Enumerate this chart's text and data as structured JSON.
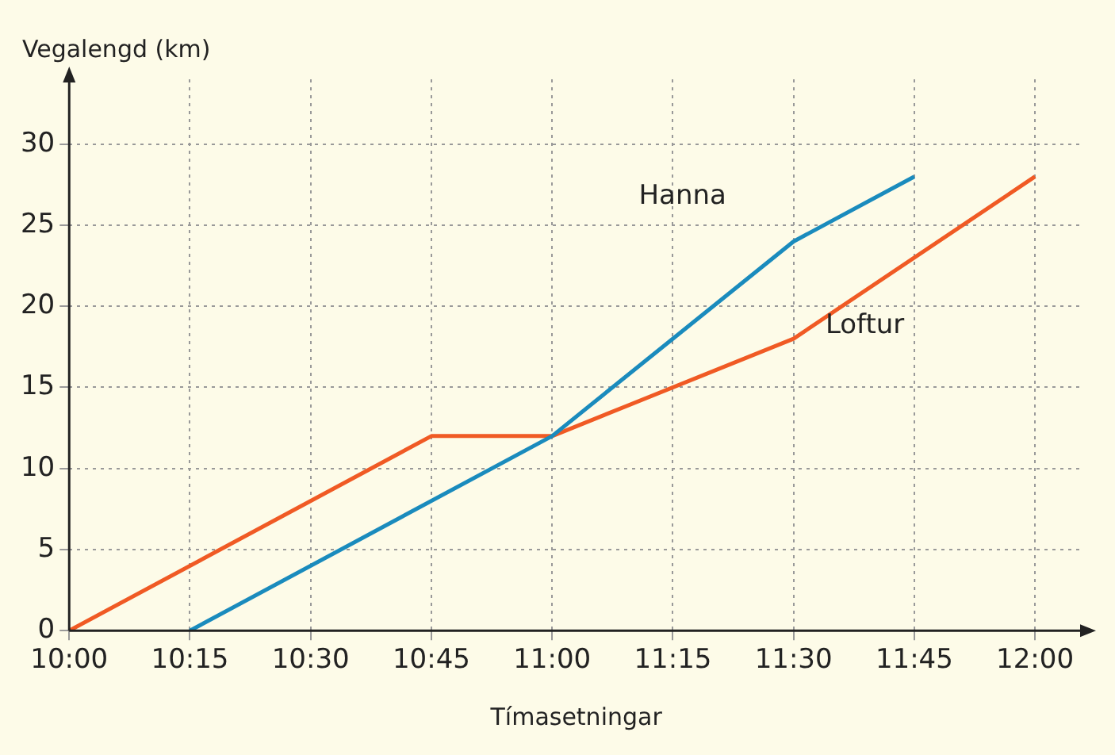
{
  "chart_data": {
    "type": "line",
    "xlabel": "Tímasetningar",
    "ylabel": "Vegalengd (km)",
    "xlim": [
      10,
      12.1
    ],
    "ylim": [
      0,
      34
    ],
    "xticks": [
      {
        "value": 10,
        "label": "10:00"
      },
      {
        "value": 10.25,
        "label": "10:15"
      },
      {
        "value": 10.5,
        "label": "10:30"
      },
      {
        "value": 10.75,
        "label": "10:45"
      },
      {
        "value": 11,
        "label": "11:00"
      },
      {
        "value": 11.25,
        "label": "11:15"
      },
      {
        "value": 11.5,
        "label": "11:30"
      },
      {
        "value": 11.75,
        "label": "11:45"
      },
      {
        "value": 12,
        "label": "12:00"
      }
    ],
    "yticks": [
      0,
      5,
      10,
      15,
      20,
      25,
      30
    ],
    "grid": true,
    "legend": false,
    "marker": "none",
    "line_style": "solid",
    "series": [
      {
        "name": "Hanna",
        "color": "#1a8bbd",
        "x": [
          10.25,
          11,
          11.5,
          11.75
        ],
        "values": [
          0,
          12,
          24,
          28
        ]
      },
      {
        "name": "Loftur",
        "color": "#f05a24",
        "x": [
          10,
          10.75,
          11,
          11.5,
          12
        ],
        "values": [
          0,
          12,
          12,
          18,
          28
        ]
      }
    ]
  }
}
